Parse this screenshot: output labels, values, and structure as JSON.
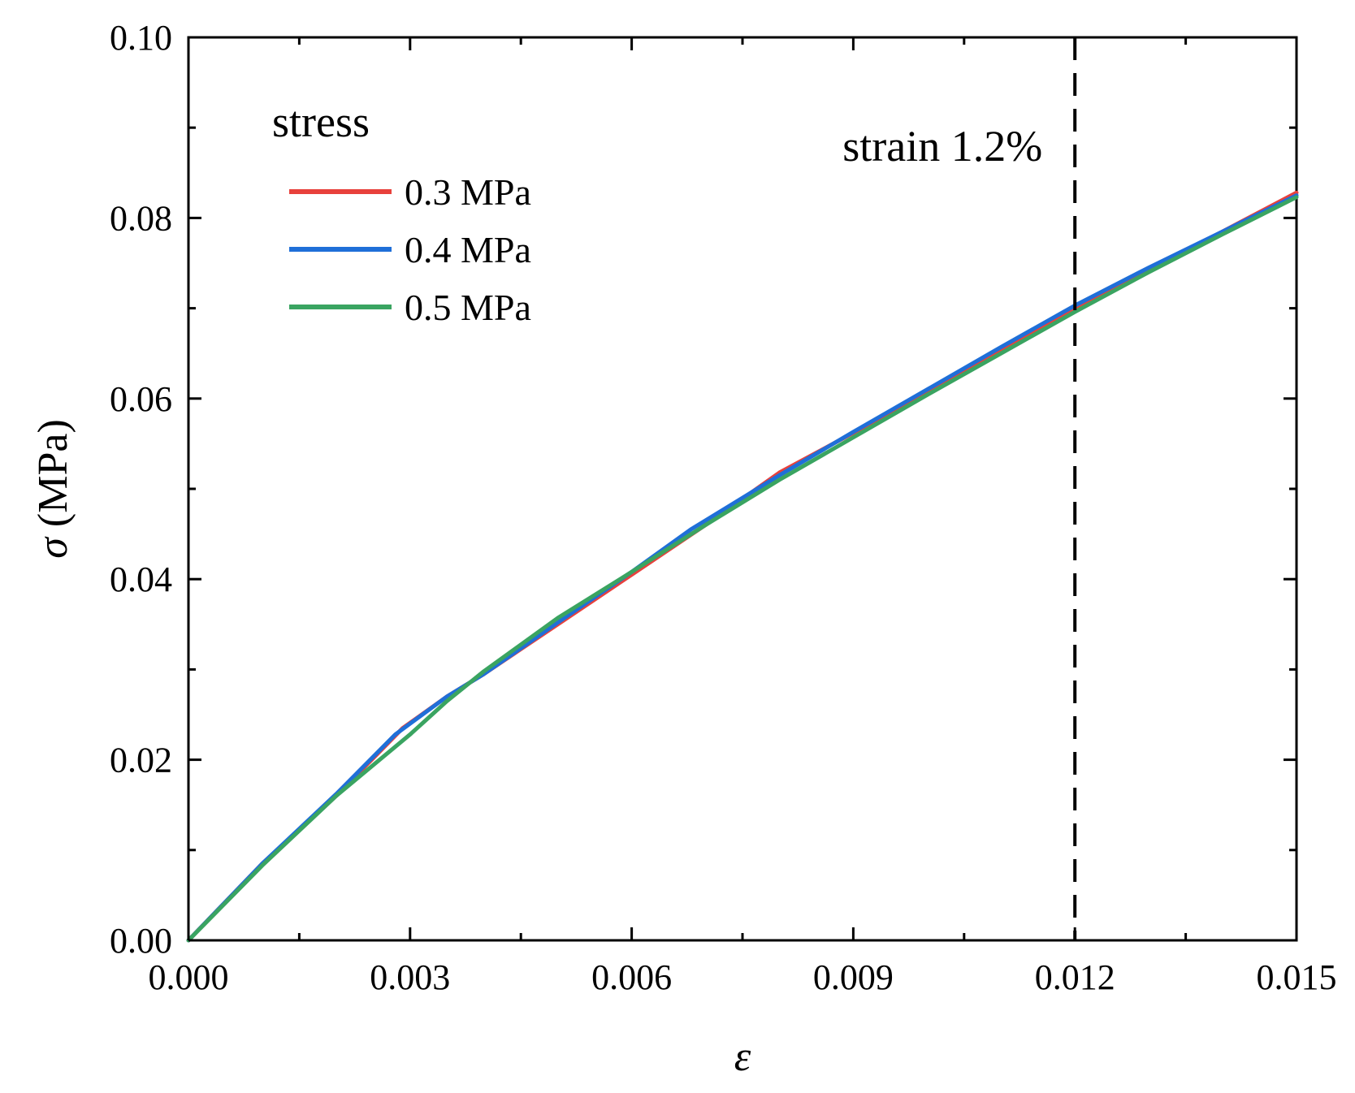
{
  "chart_data": {
    "type": "line",
    "title": "",
    "xlabel": "ε",
    "ylabel_symbol": "σ",
    "ylabel_unit": "(MPa)",
    "xlim": [
      0,
      0.015
    ],
    "ylim": [
      0,
      0.1
    ],
    "x_ticks": [
      0,
      0.003,
      0.006,
      0.009,
      0.012,
      0.015
    ],
    "x_tick_labels": [
      "0.000",
      "0.003",
      "0.006",
      "0.009",
      "0.012",
      "0.015"
    ],
    "x_minor_ticks": [
      0.0015,
      0.0045,
      0.0075,
      0.0105,
      0.0135
    ],
    "y_ticks": [
      0,
      0.02,
      0.04,
      0.06,
      0.08,
      0.1
    ],
    "y_tick_labels": [
      "0.00",
      "0.02",
      "0.04",
      "0.06",
      "0.08",
      "0.10"
    ],
    "y_minor_ticks": [
      0.01,
      0.03,
      0.05,
      0.07,
      0.09
    ],
    "grid": false,
    "legend": {
      "title": "stress",
      "position": "top-left"
    },
    "series": [
      {
        "name": "0.3 MPa",
        "color": "#e8413c",
        "x": [
          0,
          0.001,
          0.002,
          0.0029,
          0.0035,
          0.004,
          0.005,
          0.006,
          0.007,
          0.008,
          0.009,
          0.01,
          0.011,
          0.012,
          0.013,
          0.014,
          0.015
        ],
        "y": [
          0,
          0.0085,
          0.016,
          0.0235,
          0.027,
          0.0295,
          0.035,
          0.0405,
          0.046,
          0.0518,
          0.0562,
          0.0608,
          0.0654,
          0.0698,
          0.0742,
          0.0785,
          0.0828
        ]
      },
      {
        "name": "0.4 MPa",
        "color": "#1f6fd8",
        "x": [
          0,
          0.001,
          0.002,
          0.0028,
          0.0035,
          0.004,
          0.005,
          0.006,
          0.0068,
          0.008,
          0.009,
          0.01,
          0.011,
          0.012,
          0.013,
          0.014,
          0.015
        ],
        "y": [
          0,
          0.0085,
          0.0162,
          0.0228,
          0.027,
          0.0295,
          0.0352,
          0.0408,
          0.0455,
          0.0515,
          0.0563,
          0.061,
          0.0657,
          0.0703,
          0.0745,
          0.0785,
          0.0825
        ]
      },
      {
        "name": "0.5 MPa",
        "color": "#3aa461",
        "x": [
          0,
          0.001,
          0.002,
          0.003,
          0.0035,
          0.004,
          0.005,
          0.006,
          0.007,
          0.008,
          0.009,
          0.01,
          0.011,
          0.012,
          0.013,
          0.014,
          0.015
        ],
        "y": [
          0,
          0.0083,
          0.016,
          0.0228,
          0.0265,
          0.0298,
          0.0357,
          0.0408,
          0.046,
          0.051,
          0.0557,
          0.0604,
          0.065,
          0.0696,
          0.074,
          0.0782,
          0.0823
        ]
      }
    ],
    "annotations": [
      {
        "type": "vline",
        "x": 0.012,
        "style": "dashed",
        "label": "strain 1.2%"
      }
    ]
  }
}
